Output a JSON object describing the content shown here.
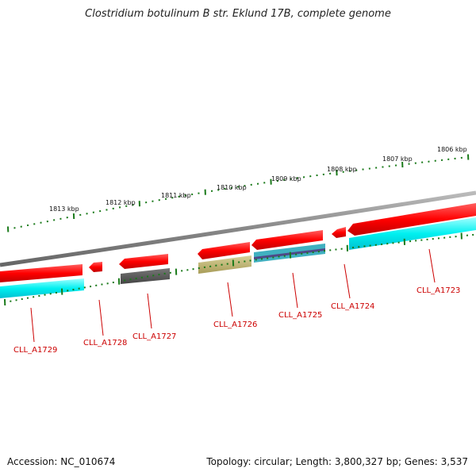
{
  "title": "Clostridium botulinum B str. Eklund 17B, complete genome",
  "footer": {
    "accession": "Accession: NC_010674",
    "summary": "Topology: circular; Length: 3,800,327 bp; Genes: 3,537"
  },
  "scale_labels": [
    "1806 kbp",
    "1807 kbp",
    "1808 kbp",
    "1809 kbp",
    "1810 kbp",
    "1811 kbp",
    "1812 kbp",
    "1813 kbp"
  ],
  "gene_labels": [
    "CLL_A1723",
    "CLL_A1724",
    "CLL_A1725",
    "CLL_A1726",
    "CLL_A1727",
    "CLL_A1728",
    "CLL_A1729"
  ],
  "colors": {
    "backbone": "#888888",
    "cds": "#ff0000",
    "cog_cyan": "#00ffff",
    "cog_dark": "#555555",
    "cog_olive": "#b8b070",
    "cog_mixed": "#40b0c0",
    "tick": "#1a7a1a",
    "label": "#cc0000"
  }
}
